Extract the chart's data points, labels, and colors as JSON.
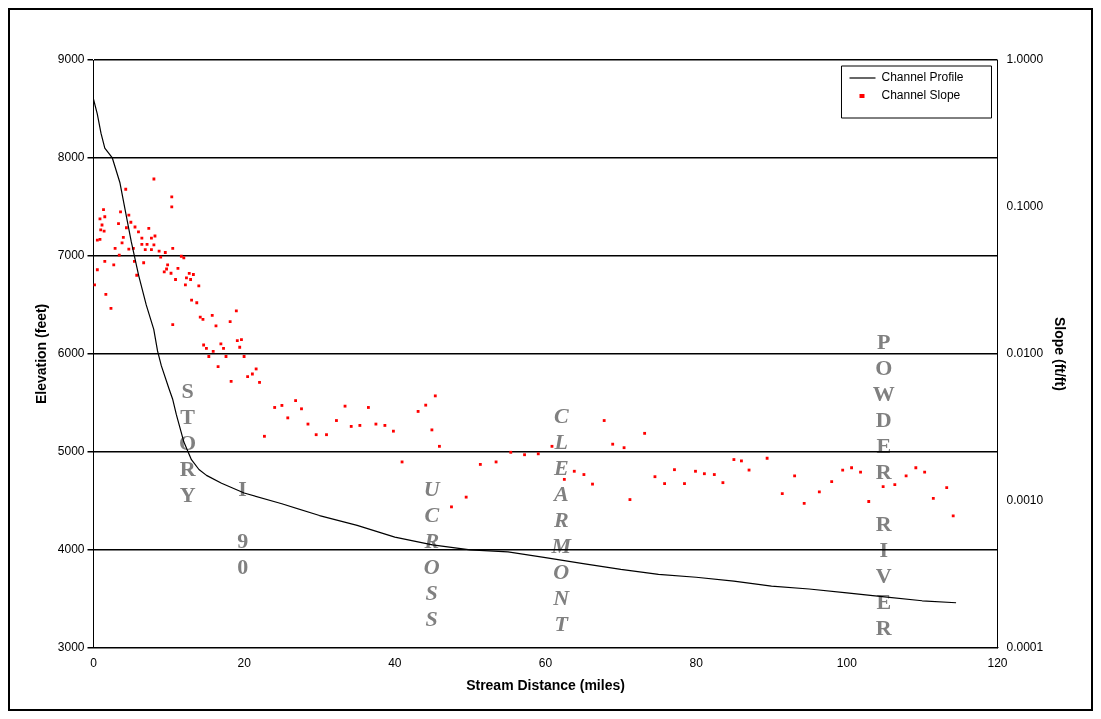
{
  "chart_data": {
    "type": "line",
    "xlabel": "Stream Distance (miles)",
    "ylabel": "Elevation (feet)",
    "y2label": "Slope (ft/ft)",
    "xlim": [
      0,
      120
    ],
    "xticks": [
      0,
      20,
      40,
      60,
      80,
      100,
      120
    ],
    "ylim": [
      3000,
      9000
    ],
    "yticks": [
      3000,
      4000,
      5000,
      6000,
      7000,
      8000,
      9000
    ],
    "y2lim": [
      0.0001,
      1
    ],
    "y2ticks": [
      {
        "value": 0.0001,
        "label": "0.0001"
      },
      {
        "value": 0.001,
        "label": "0.0010"
      },
      {
        "value": 0.01,
        "label": "0.0100"
      },
      {
        "value": 0.1,
        "label": "0.1000"
      },
      {
        "value": 1,
        "label": "1.0000"
      }
    ],
    "log": "y2",
    "grid": "y",
    "legend": "top right",
    "series": [
      {
        "name": "Channel Profile",
        "type": "line",
        "color": "#000000",
        "marker": "none",
        "line_style": "solid",
        "x": [
          0,
          0.5,
          1,
          1.5,
          2.5,
          3.5,
          4.5,
          5,
          6,
          7,
          8,
          8.5,
          9,
          10,
          10.5,
          11,
          12,
          13,
          14,
          15,
          17,
          20,
          25,
          30,
          35,
          40,
          45,
          50,
          55,
          60,
          65,
          70,
          75,
          80,
          85,
          90,
          95,
          100,
          105,
          110,
          114.5
        ],
        "values": [
          8600,
          8450,
          8250,
          8100,
          8000,
          7750,
          7350,
          7150,
          6800,
          6500,
          6250,
          6030,
          5880,
          5650,
          5540,
          5380,
          5100,
          4920,
          4820,
          4760,
          4680,
          4580,
          4470,
          4350,
          4250,
          4130,
          4050,
          4000,
          3980,
          3920,
          3860,
          3800,
          3750,
          3720,
          3680,
          3630,
          3600,
          3560,
          3520,
          3480,
          3460
        ]
      },
      {
        "name": "Channel Slope",
        "type": "scatter",
        "axis": "y2",
        "color": "#ff0000",
        "marker": "square",
        "x": [
          8.02,
          4.28,
          10.39,
          10.39,
          1.33,
          1.5,
          0.86,
          4.69,
          3.59,
          3.32,
          1.13,
          4.96,
          4.37,
          5.51,
          5.97,
          7.34,
          0.96,
          1.41,
          3.96,
          6.42,
          8.16,
          7.69,
          0.86,
          0.51,
          3.79,
          6.42,
          7.11,
          8.02,
          2.87,
          4.69,
          5.29,
          6.87,
          7.69,
          8.71,
          9.53,
          10.52,
          3.42,
          8.92,
          11.66,
          11.99,
          1.5,
          5.43,
          6.66,
          2.69,
          9.84,
          0.51,
          9.7,
          11.21,
          9.39,
          10.29,
          5.74,
          12.71,
          13.26,
          10.89,
          12.34,
          12.89,
          0.14,
          12.2,
          13.98,
          1.64,
          13.02,
          13.71,
          2.32,
          14.17,
          14.53,
          15.76,
          10.52,
          16.26,
          18.14,
          18.96,
          14.62,
          16.91,
          14.99,
          17.26,
          19.09,
          19.64,
          15.89,
          19.41,
          15.31,
          17.59,
          19.99,
          16.54,
          21.59,
          21.09,
          20.46,
          18.27,
          22.04,
          22.69,
          24.05,
          25.01,
          26.83,
          25.79,
          27.61,
          28.47,
          29.56,
          30.93,
          32.25,
          33.39,
          34.21,
          35.36,
          36.49,
          37.49,
          38.68,
          39.81,
          40.96,
          43.09,
          44.1,
          45.37,
          44.92,
          45.92,
          47.52,
          49.47,
          51.35,
          53.44,
          55.39,
          57.22,
          59.04,
          60.86,
          62.5,
          63.82,
          65.1,
          66.24,
          67.79,
          68.92,
          70.43,
          71.21,
          73.16,
          74.53,
          75.81,
          77.12,
          78.45,
          79.91,
          81.09,
          82.41,
          83.55,
          85.01,
          86.01,
          87.02,
          89.42,
          91.43,
          93.07,
          94.34,
          96.35,
          97.99,
          99.45,
          100.63,
          101.82,
          102.91,
          104.82,
          106.37,
          107.87,
          109.16,
          110.33,
          111.48,
          113.26,
          114.12
        ],
        "values": [
          0.155,
          0.132,
          0.117,
          0.1,
          0.096,
          0.0858,
          0.083,
          0.088,
          0.0925,
          0.077,
          0.0754,
          0.0787,
          0.0722,
          0.073,
          0.0676,
          0.0714,
          0.0699,
          0.0684,
          0.0621,
          0.0614,
          0.0634,
          0.0614,
          0.0601,
          0.0594,
          0.057,
          0.0557,
          0.0557,
          0.0552,
          0.0522,
          0.0517,
          0.0522,
          0.0512,
          0.0512,
          0.0501,
          0.049,
          0.0522,
          0.047,
          0.0455,
          0.0462,
          0.045,
          0.0426,
          0.0426,
          0.0417,
          0.0403,
          0.0403,
          0.0374,
          0.0378,
          0.0382,
          0.0362,
          0.0354,
          0.0343,
          0.0353,
          0.0347,
          0.0321,
          0.0329,
          0.0321,
          0.0295,
          0.0295,
          0.029,
          0.0254,
          0.0232,
          0.0223,
          0.0204,
          0.0178,
          0.0172,
          0.0183,
          0.0158,
          0.0155,
          0.0166,
          0.0196,
          0.0115,
          0.0117,
          0.0109,
          0.0109,
          0.0123,
          0.0125,
          0.0104,
          0.0111,
          0.0096,
          0.0096,
          0.0096,
          0.0082,
          0.0079,
          0.0073,
          0.007,
          0.0065,
          0.0064,
          0.00275,
          0.00432,
          0.00446,
          0.00481,
          0.00367,
          0.00423,
          0.00333,
          0.00282,
          0.00282,
          0.00352,
          0.00441,
          0.00321,
          0.00326,
          0.00432,
          0.00333,
          0.00326,
          0.00298,
          0.00184,
          0.00406,
          0.00448,
          0.00518,
          0.00304,
          0.00235,
          0.00091,
          0.00106,
          0.00177,
          0.00184,
          0.00214,
          0.00206,
          0.00209,
          0.00235,
          0.0014,
          0.00159,
          0.00151,
          0.0013,
          0.00352,
          0.00243,
          0.0023,
          0.00102,
          0.00288,
          0.00146,
          0.00131,
          0.00163,
          0.00131,
          0.00159,
          0.00153,
          0.00151,
          0.00133,
          0.00191,
          0.00187,
          0.00162,
          0.00195,
          0.00112,
          0.00148,
          0.00096,
          0.00115,
          0.00135,
          0.00162,
          0.00168,
          0.00157,
          0.00099,
          0.00125,
          0.00129,
          0.00148,
          0.00168,
          0.00157,
          0.00104,
          0.00123,
          0.00079
        ]
      }
    ],
    "annotations": [
      "STORY",
      "I 90",
      "UCROSS",
      "CLEARMONT",
      "POWDER RIVER"
    ]
  }
}
